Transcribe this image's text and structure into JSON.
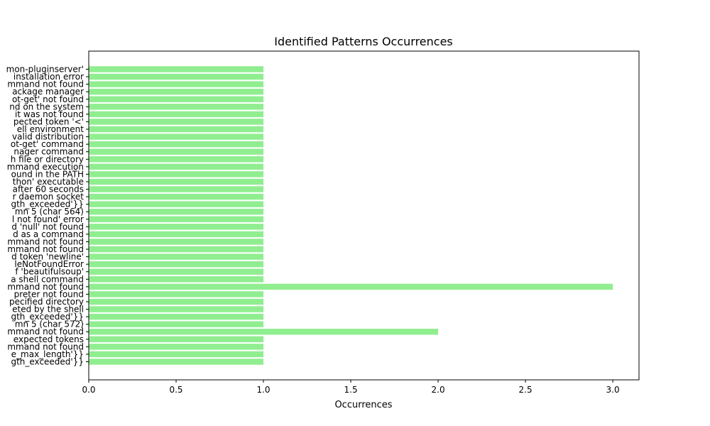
{
  "chart_data": {
    "type": "bar",
    "orientation": "horizontal",
    "title": "Identified Patterns Occurrences",
    "xlabel": "Occurrences",
    "ylabel": "",
    "xlim": [
      0,
      3.15
    ],
    "xticks": [
      "0.0",
      "0.5",
      "1.0",
      "1.5",
      "2.0",
      "2.5",
      "3.0"
    ],
    "grid": false,
    "bar_color": "#90ee90",
    "categories": [
      "…mon-pluginserver'",
      "…installation error",
      "…mmand not found",
      "…ackage manager",
      "…ot-get' not found",
      "…nd on the system",
      "… it was not found",
      "…pected token '<'",
      "…ell environment",
      "…valid distribution",
      "…ot-get' command",
      "…nager command",
      "…h file or directory",
      "…mmand execution",
      "…ound in the PATH",
      "…thon' executable",
      "…after 60 seconds",
      "…r daemon socket",
      "…gth_exceeded'}}",
      "…mn 5 (char 564)",
      "…l not found' error",
      "…d 'null' not found",
      "…d as a command",
      "…mmand not found",
      "…mmand not found",
      "…d token 'newline'",
      "…leNotFoundError",
      "…f 'beautifulsoup'",
      "…a shell command",
      "…mmand not found",
      "…preter not found",
      "…pecified directory",
      "…eted by the shell",
      "…gth_exceeded'}}",
      "…mn 5 (char 572)",
      "…mmand not found",
      "…expected tokens",
      "…mmand not found",
      "…e_max_length'}}",
      "…gth_exceeded'}}"
    ],
    "values": [
      1,
      1,
      1,
      1,
      1,
      1,
      1,
      1,
      1,
      1,
      1,
      1,
      1,
      1,
      1,
      1,
      1,
      1,
      1,
      1,
      1,
      1,
      1,
      1,
      1,
      1,
      1,
      1,
      1,
      3,
      1,
      1,
      1,
      1,
      1,
      2,
      1,
      1,
      1,
      1
    ]
  }
}
